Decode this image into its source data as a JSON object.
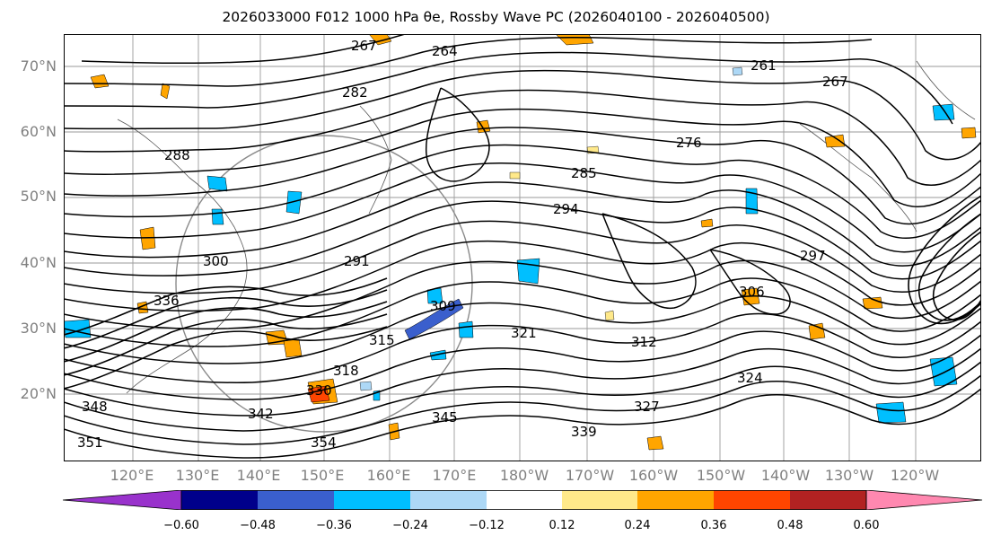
{
  "title": "2026033000 F012 1000 hPa θe, Rossby Wave PC (2026040100 - 2026040500)",
  "lat_labels": [
    "70°N",
    "60°N",
    "50°N",
    "40°N",
    "30°N",
    "20°N"
  ],
  "lon_labels": [
    "120°E",
    "130°E",
    "140°E",
    "150°E",
    "160°E",
    "170°E",
    "180°W",
    "170°W",
    "160°W",
    "150°W",
    "140°W",
    "130°W",
    "120°W"
  ],
  "contour_labels": [
    "264",
    "267",
    "261",
    "267",
    "282",
    "276",
    "288",
    "285",
    "291",
    "294",
    "300",
    "297",
    "306",
    "309",
    "312",
    "315",
    "318",
    "321",
    "324",
    "327",
    "330",
    "336",
    "339",
    "342",
    "345",
    "348",
    "351",
    "354"
  ],
  "colorbar": {
    "ticks": [
      "−0.60",
      "−0.48",
      "−0.36",
      "−0.24",
      "−0.12",
      "0.12",
      "0.24",
      "0.36",
      "0.48",
      "0.60"
    ],
    "colors": [
      "#9932cc",
      "#00008b",
      "#3a5fcd",
      "#00bfff",
      "#add8f6",
      "#ffffff",
      "#ffe98a",
      "#ffa500",
      "#ff4500",
      "#b22222",
      "#ff88b0"
    ]
  },
  "shading_colors": {
    "positive": "#ffa500",
    "negative": "#00bfff"
  }
}
